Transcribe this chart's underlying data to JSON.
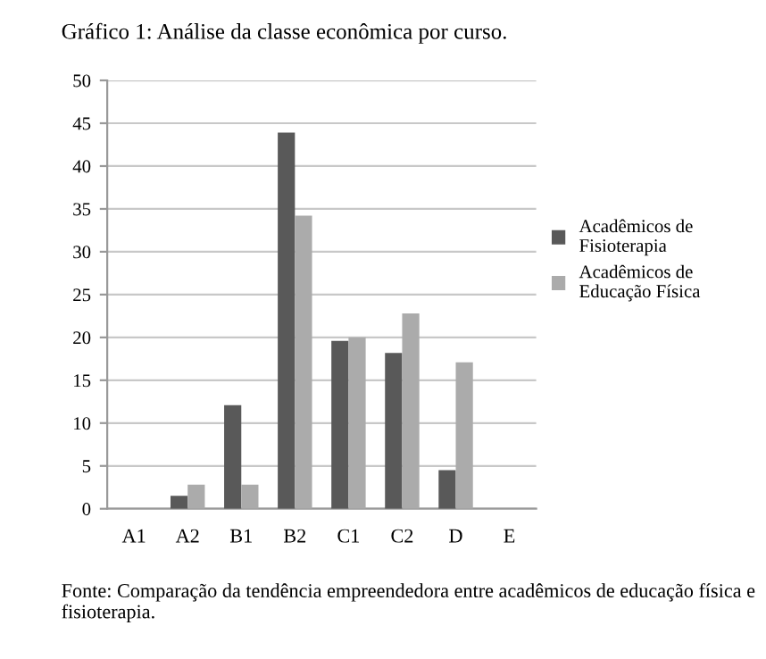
{
  "chart_data": {
    "type": "bar",
    "title": "Gráfico 1: Análise da classe econômica por curso.",
    "categories": [
      "A1",
      "A2",
      "B1",
      "B2",
      "C1",
      "C2",
      "D",
      "E"
    ],
    "series": [
      {
        "name": "Acadêmicos de Fisioterapia",
        "color": "#595959",
        "values": [
          0,
          1.5,
          12.1,
          43.9,
          19.6,
          18.2,
          4.5,
          0
        ]
      },
      {
        "name": "Acadêmicos de Educação Física",
        "color": "#ababab",
        "values": [
          0,
          2.8,
          2.8,
          34.2,
          20,
          22.8,
          17.1,
          0
        ]
      }
    ],
    "ylim": [
      0,
      50
    ],
    "yticks": [
      0,
      5,
      10,
      15,
      20,
      25,
      30,
      35,
      40,
      45,
      50
    ],
    "grid": "y",
    "legend": "right",
    "annotations": [
      "Fonte: Comparação da tendência empreendedora entre acadêmicos de educação física e fisioterapia."
    ]
  }
}
